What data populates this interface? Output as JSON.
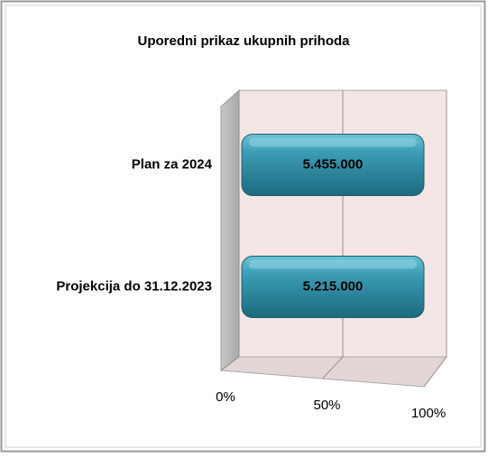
{
  "chart_data": {
    "type": "bar",
    "stacked": "percent",
    "title": "Uporedni prikaz ukupnih prihoda",
    "categories": [
      "Plan za 2024",
      "Projekcija do 31.12.2023"
    ],
    "values": [
      5455000,
      5215000
    ],
    "value_labels": [
      "5.455.000",
      "5.215.000"
    ],
    "color": "#2f8fa6",
    "xlim": [
      0,
      100
    ],
    "xticks": [
      {
        "value": 0,
        "label": "0%"
      },
      {
        "value": 50,
        "label": "50%"
      },
      {
        "value": 100,
        "label": "100%"
      }
    ],
    "grid": true
  }
}
